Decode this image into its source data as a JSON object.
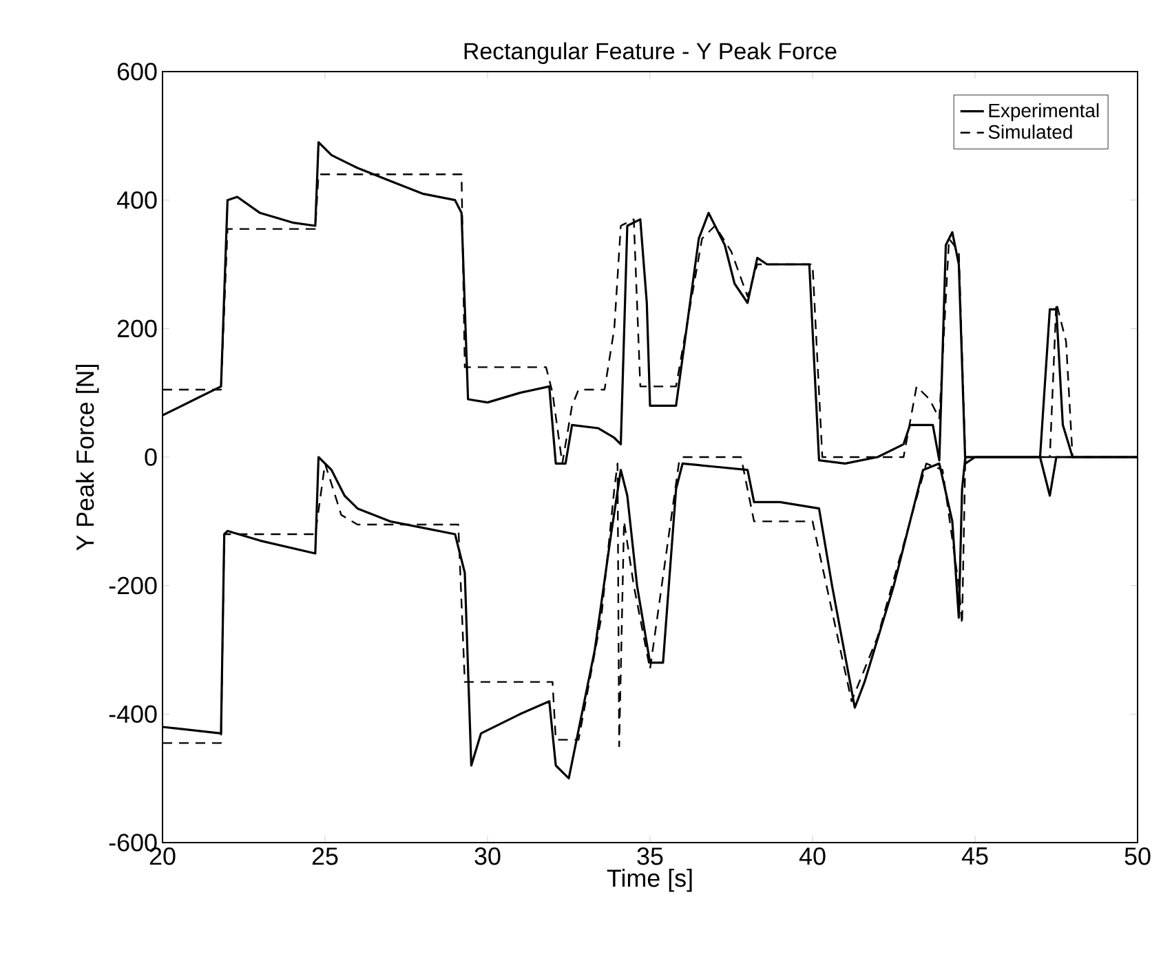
{
  "chart_data": {
    "type": "line",
    "title": "Rectangular Feature - Y Peak Force",
    "xlabel": "Time [s]",
    "ylabel": "Y Peak Force [N]",
    "xlim": [
      20,
      50
    ],
    "ylim": [
      -600,
      600
    ],
    "xticks": [
      20,
      25,
      30,
      35,
      40,
      45,
      50
    ],
    "yticks": [
      -600,
      -400,
      -200,
      0,
      200,
      400,
      600
    ],
    "grid": false,
    "legend": "top right",
    "marker": "none",
    "series": [
      {
        "name": "Experimental",
        "color": "#000000",
        "line_style": "solid",
        "x": [
          20,
          21,
          21.8,
          22.0,
          22.3,
          23,
          24,
          24.7,
          24.8,
          25.2,
          26,
          27,
          28,
          29,
          29.2,
          29.4,
          30,
          31,
          31.9,
          32.1,
          32.4,
          32.6,
          33.4,
          33.9,
          34.1,
          34.3,
          34.7,
          34.9,
          35,
          35.8,
          36.5,
          36.8,
          37.3,
          37.6,
          38,
          38.3,
          38.6,
          39.9,
          40.2,
          41,
          42,
          42.8,
          43,
          43.7,
          43.9,
          44.1,
          44.3,
          44.5,
          44.7,
          45,
          47,
          47.3,
          47.5,
          47.7,
          48,
          50
        ],
        "values": [
          65,
          90,
          110,
          400,
          405,
          380,
          365,
          360,
          490,
          470,
          450,
          430,
          410,
          400,
          380,
          90,
          85,
          100,
          110,
          -10,
          -10,
          50,
          45,
          30,
          20,
          360,
          370,
          240,
          80,
          80,
          340,
          380,
          330,
          270,
          240,
          310,
          300,
          300,
          -5,
          -10,
          0,
          20,
          50,
          50,
          -5,
          330,
          350,
          300,
          -10,
          0,
          0,
          230,
          230,
          50,
          0,
          0
        ]
      },
      {
        "color": "#000000",
        "line_style": "solid",
        "x": [
          20,
          21.8,
          21.9,
          22,
          23,
          24.7,
          24.8,
          25.2,
          25.6,
          26,
          27,
          28,
          29,
          29.3,
          29.5,
          29.8,
          31,
          31.9,
          32.1,
          32.5,
          33.3,
          33.8,
          34.1,
          34.3,
          34.6,
          35.0,
          35.4,
          35.8,
          36,
          37,
          38,
          38.2,
          39,
          40.2,
          40.6,
          41.3,
          41.6,
          42.5,
          43.4,
          43.9,
          44.3,
          44.5,
          44.6,
          44.7,
          47,
          47.3,
          47.5,
          50
        ],
        "values": [
          -420,
          -430,
          -120,
          -115,
          -130,
          -150,
          0,
          -20,
          -60,
          -80,
          -100,
          -110,
          -120,
          -180,
          -480,
          -430,
          -400,
          -380,
          -480,
          -500,
          -300,
          -120,
          -20,
          -60,
          -200,
          -320,
          -320,
          -50,
          -10,
          -15,
          -20,
          -70,
          -70,
          -80,
          -200,
          -390,
          -350,
          -200,
          -20,
          -10,
          -100,
          -250,
          -50,
          0,
          0,
          -60,
          0,
          0
        ]
      },
      {
        "name": "Simulated",
        "color": "#000000",
        "line_style": "dashed",
        "x": [
          20,
          21.8,
          22.0,
          22.3,
          24.7,
          24.8,
          25.3,
          29,
          29.2,
          29.3,
          31.8,
          32,
          32.3,
          32.6,
          32.8,
          33.6,
          33.9,
          34.1,
          34.5,
          34.7,
          35.8,
          36.6,
          37,
          37.5,
          38,
          38.3,
          40,
          40.3,
          42.8,
          43.2,
          43.6,
          43.9,
          44.2,
          44.5,
          44.7,
          47.3,
          47.5,
          47.8,
          48,
          50
        ],
        "values": [
          105,
          105,
          355,
          355,
          355,
          440,
          440,
          440,
          440,
          140,
          140,
          100,
          -10,
          80,
          105,
          105,
          200,
          360,
          370,
          110,
          110,
          340,
          360,
          320,
          250,
          300,
          300,
          0,
          0,
          110,
          90,
          60,
          340,
          320,
          0,
          0,
          240,
          180,
          0,
          0
        ]
      },
      {
        "color": "#000000",
        "line_style": "dashed",
        "x": [
          20,
          21.8,
          21.9,
          24.7,
          25,
          25.5,
          26,
          29.1,
          29.3,
          32.0,
          32.1,
          32.8,
          33.5,
          33.9,
          34.0,
          34.05,
          34.2,
          34.5,
          35,
          35.9,
          36,
          37.8,
          38.2,
          39.3,
          40,
          41.2,
          42,
          43.5,
          44,
          44.5,
          44.6,
          44.7,
          50
        ],
        "values": [
          -445,
          -445,
          -120,
          -120,
          -10,
          -90,
          -105,
          -105,
          -350,
          -350,
          -440,
          -440,
          -250,
          -50,
          -10,
          -450,
          -100,
          -200,
          -330,
          -5,
          0,
          0,
          -100,
          -100,
          -100,
          -380,
          -280,
          -10,
          -20,
          -200,
          -260,
          0,
          0
        ]
      }
    ]
  }
}
